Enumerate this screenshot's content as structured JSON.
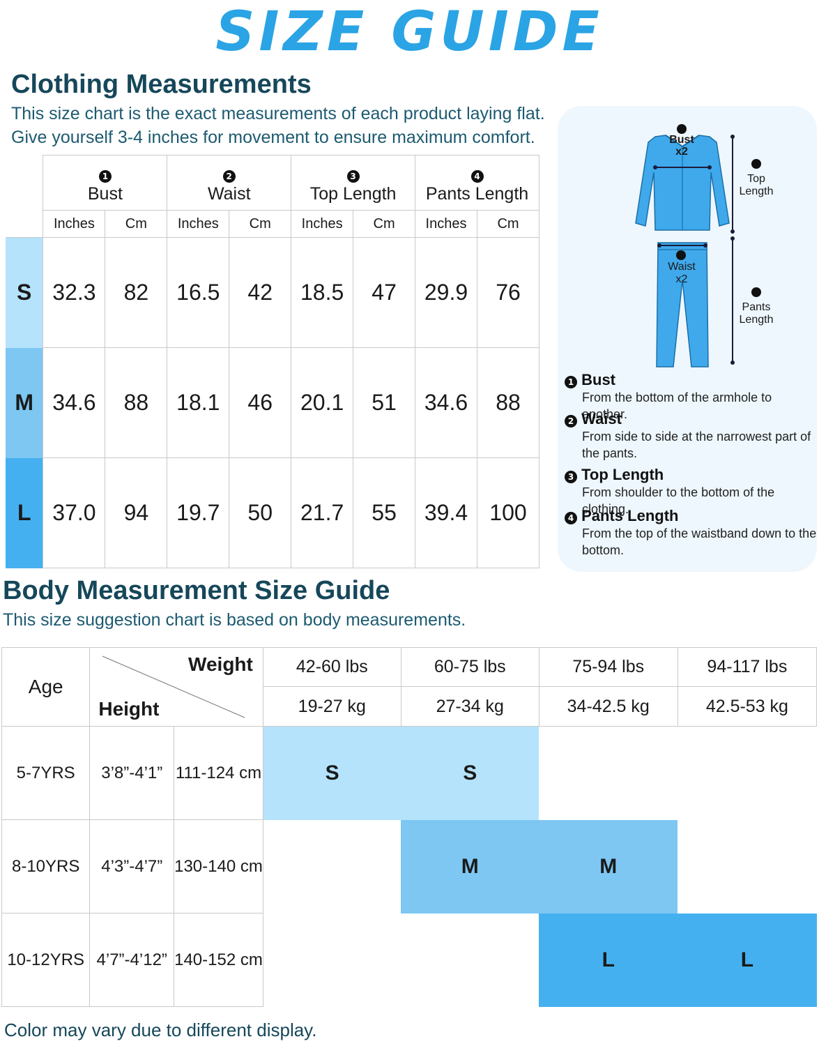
{
  "page": {
    "brand_title": "SIZE GUIDE",
    "footer": "Color may vary due to different display."
  },
  "clothing": {
    "title": "Clothing Measurements",
    "subtitle_line1": "This size chart is the exact measurements of each product laying flat.",
    "subtitle_line2": "Give yourself 3-4 inches for movement to ensure maximum comfort.",
    "columns": [
      {
        "num": "1",
        "label": "Bust"
      },
      {
        "num": "2",
        "label": "Waist"
      },
      {
        "num": "3",
        "label": "Top Length"
      },
      {
        "num": "4",
        "label": "Pants Length"
      }
    ],
    "unit_in": "Inches",
    "unit_cm": "Cm",
    "rows": [
      {
        "size": "S",
        "values": [
          "32.3",
          "82",
          "16.5",
          "42",
          "18.5",
          "47",
          "29.9",
          "76"
        ]
      },
      {
        "size": "M",
        "values": [
          "34.6",
          "88",
          "18.1",
          "46",
          "20.1",
          "51",
          "34.6",
          "88"
        ]
      },
      {
        "size": "L",
        "values": [
          "37.0",
          "94",
          "19.7",
          "50",
          "21.7",
          "55",
          "39.4",
          "100"
        ]
      }
    ],
    "size_colors": [
      "#b5e3fb",
      "#7dc7f2",
      "#45b0ef"
    ]
  },
  "diagram": {
    "bust_label": "Bust",
    "bust_mult": "x2",
    "waist_label": "Waist",
    "waist_mult": "x2",
    "top_label_1": "Top",
    "top_label_2": "Length",
    "pants_label_1": "Pants",
    "pants_label_2": "Length",
    "garment_color": "#3fa9ec"
  },
  "legend": [
    {
      "num": "1",
      "title": "Bust",
      "desc": "From the bottom of the armhole to another."
    },
    {
      "num": "2",
      "title": "Waist",
      "desc": "From side to side at the narrowest part of the pants."
    },
    {
      "num": "3",
      "title": "Top Length",
      "desc": "From shoulder to the bottom of the clothing."
    },
    {
      "num": "4",
      "title": "Pants Length",
      "desc": "From the top of the waistband down to the bottom."
    }
  ],
  "body": {
    "title": "Body Measurement Size Guide",
    "subtitle": "This size suggestion chart is based on body measurements.",
    "age_label": "Age",
    "weight_label": "Weight",
    "height_label": "Height",
    "weights_lbs": [
      "42-60 lbs",
      "60-75 lbs",
      "75-94 lbs",
      "94-117 lbs"
    ],
    "weights_kg": [
      "19-27 kg",
      "27-34 kg",
      "34-42.5 kg",
      "42.5-53 kg"
    ],
    "rows": [
      {
        "age": "5-7YRS",
        "height_ft": "3’8”-4’1”",
        "height_cm": "111-124 cm",
        "sizes": [
          "S",
          "S",
          "",
          ""
        ]
      },
      {
        "age": "8-10YRS",
        "height_ft": "4’3”-4’7”",
        "height_cm": "130-140 cm",
        "sizes": [
          "",
          "M",
          "M",
          ""
        ]
      },
      {
        "age": "10-12YRS",
        "height_ft": "4’7”-4’12”",
        "height_cm": "140-152 cm",
        "sizes": [
          "",
          "",
          "L",
          "L"
        ]
      }
    ]
  }
}
